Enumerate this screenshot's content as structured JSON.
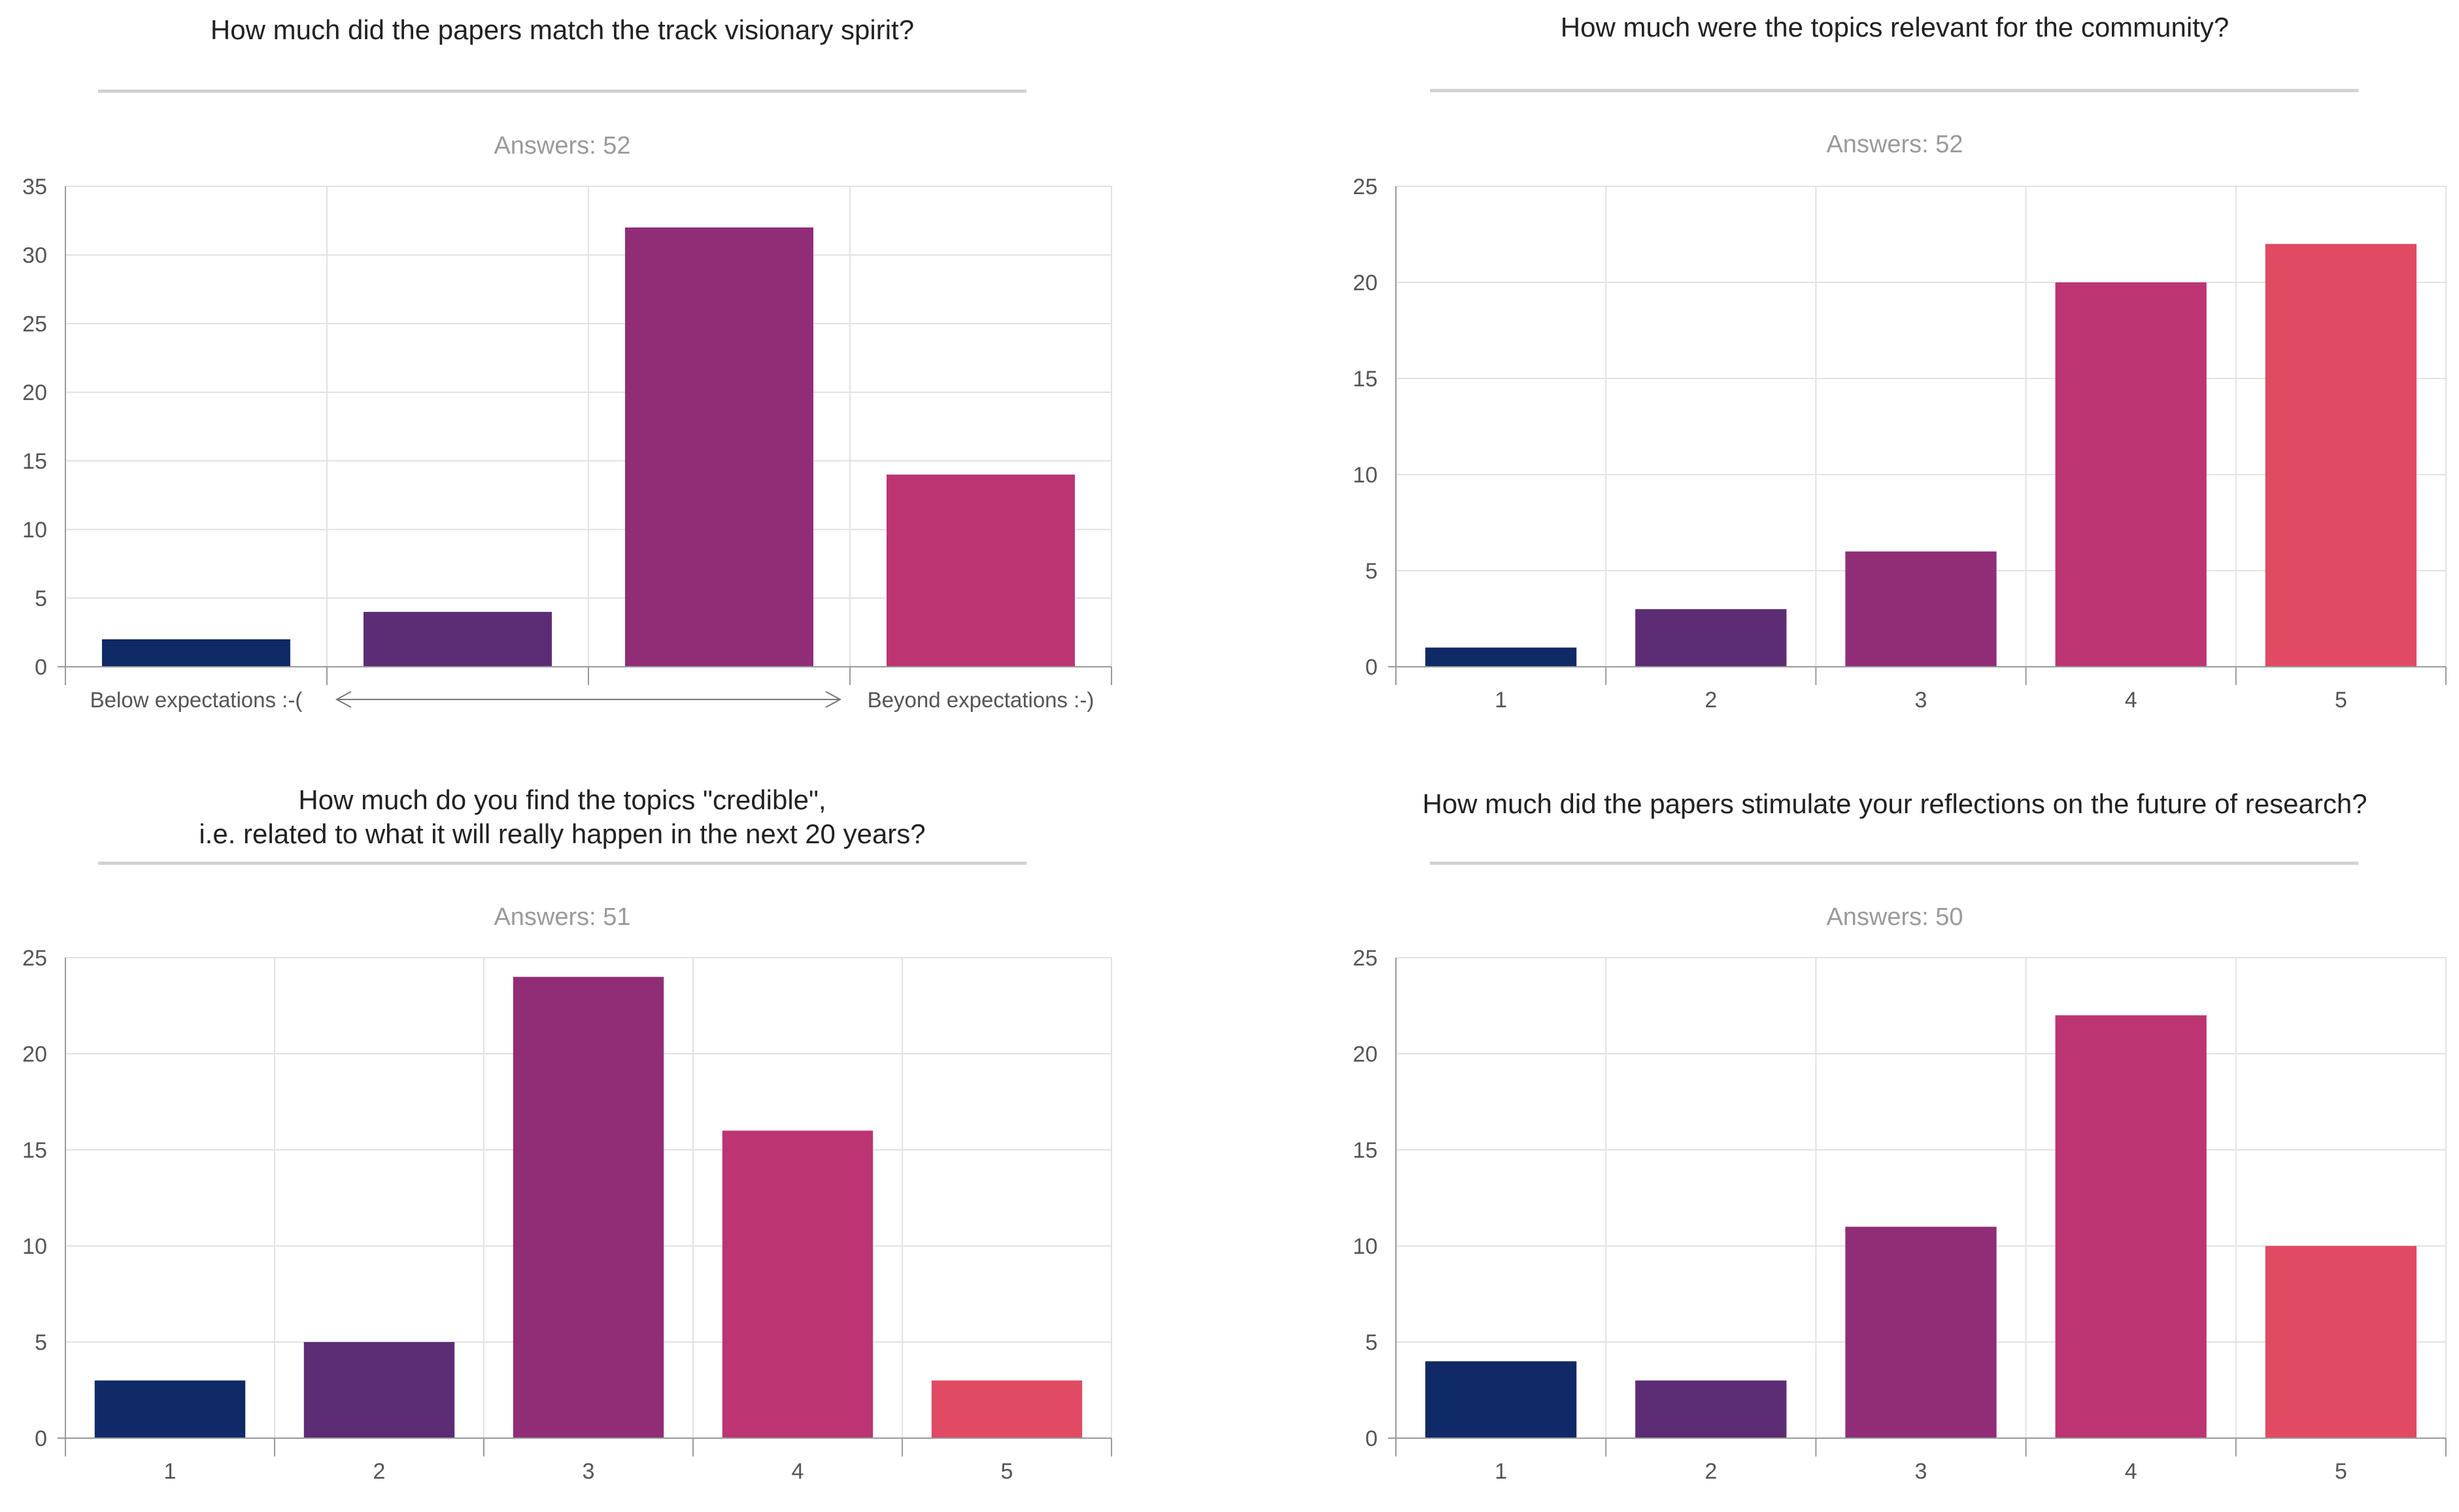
{
  "colors": {
    "c1": "#0f2a66",
    "c2": "#5c2d75",
    "c3": "#912d77",
    "c4": "#bd3472",
    "c5": "#e04a63",
    "grid": "#e2e2e2",
    "axis": "#9a9a9a"
  },
  "chart_data": [
    {
      "type": "bar",
      "title": "How much did the papers match the track visionary spirit?",
      "subtitle": "Answers: 52",
      "categories": [
        "Below expectations :-(",
        "",
        "",
        "Beyond expectations :-)"
      ],
      "values": [
        2,
        4,
        32,
        14
      ],
      "ylim": [
        0,
        35
      ],
      "yticks": [
        0,
        5,
        10,
        15,
        20,
        25,
        30,
        35
      ],
      "grid": true,
      "annotation": "double-headed arrow between end labels"
    },
    {
      "type": "bar",
      "title": "How much were the topics relevant for the community?",
      "subtitle": "Answers: 52",
      "categories": [
        "1",
        "2",
        "3",
        "4",
        "5"
      ],
      "values": [
        1,
        3,
        6,
        20,
        22
      ],
      "ylim": [
        0,
        25
      ],
      "yticks": [
        0,
        5,
        10,
        15,
        20,
        25
      ],
      "grid": true
    },
    {
      "type": "bar",
      "title_lines": [
        "How much do you find the topics \"credible\",",
        "i.e. related to what it will really happen in the next 20 years?"
      ],
      "subtitle": "Answers: 51",
      "categories": [
        "1",
        "2",
        "3",
        "4",
        "5"
      ],
      "values": [
        3,
        5,
        24,
        16,
        3
      ],
      "ylim": [
        0,
        25
      ],
      "yticks": [
        0,
        5,
        10,
        15,
        20,
        25
      ],
      "grid": true
    },
    {
      "type": "bar",
      "title": "How much did the papers stimulate your reflections on the future of research?",
      "subtitle": "Answers: 50",
      "categories": [
        "1",
        "2",
        "3",
        "4",
        "5"
      ],
      "values": [
        4,
        3,
        11,
        22,
        10
      ],
      "ylim": [
        0,
        25
      ],
      "yticks": [
        0,
        5,
        10,
        15,
        20,
        25
      ],
      "grid": true
    }
  ]
}
